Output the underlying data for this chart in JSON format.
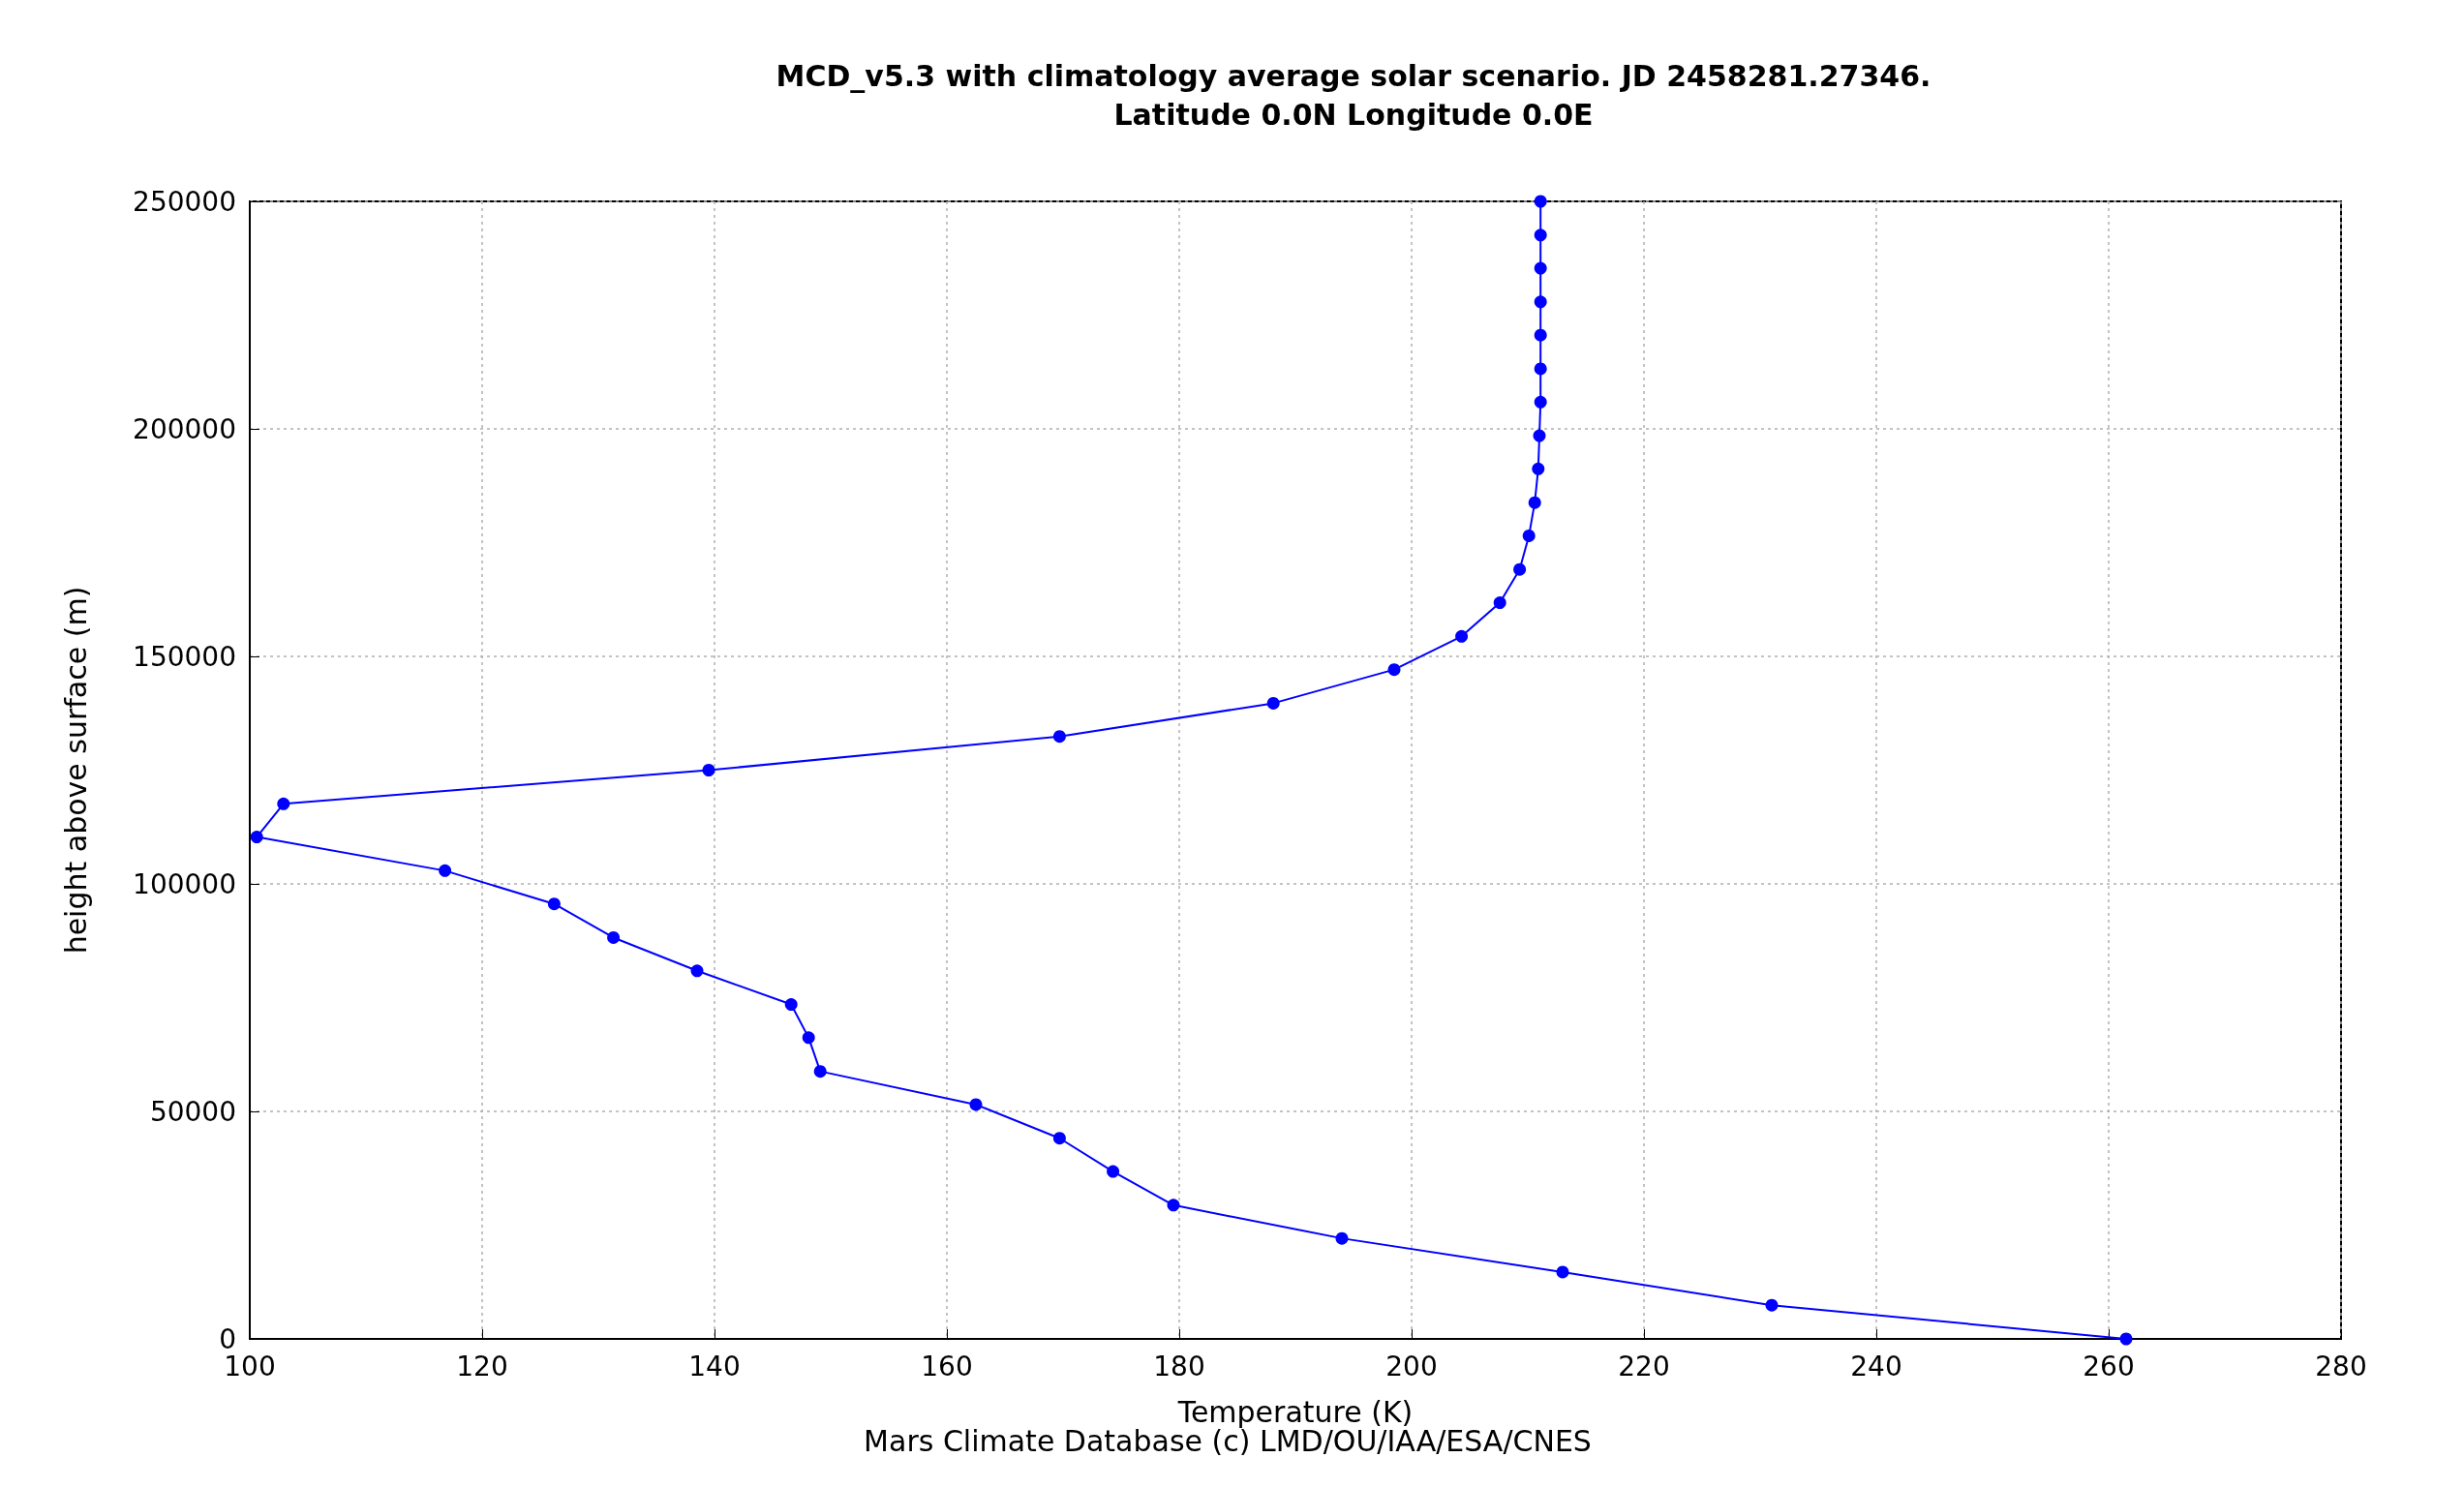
{
  "chart_data": {
    "type": "line",
    "title": "MCD_v5.3 with climatology average solar scenario. JD 2458281.27346.\nLatitude 0.0N Longitude 0.0E",
    "xlabel": "Temperature (K)",
    "ylabel": "height above surface (m)",
    "annotations": [
      "Mars Climate Database (c) LMD/OU/IAA/ESA/CNES"
    ],
    "series": [
      {
        "color": "#0000ff",
        "x": [
          261.5,
          231,
          213,
          194,
          179.5,
          174.3,
          169.7,
          162.5,
          149.1,
          148.1,
          146.6,
          138.5,
          131.3,
          126.2,
          116.8,
          100.6,
          102.9,
          139.5,
          169.7,
          188.1,
          198.5,
          204.3,
          207.6,
          209.3,
          210.1,
          210.6,
          210.9,
          211,
          211.1,
          211.1,
          211.1,
          211.1,
          211.1,
          211.1,
          211.1
        ],
        "values": [
          0,
          7400,
          14700,
          22100,
          29400,
          36800,
          44100,
          51500,
          58800,
          66200,
          73500,
          80900,
          88200,
          95600,
          102900,
          110300,
          117600,
          125000,
          132400,
          139700,
          147100,
          154400,
          161800,
          169100,
          176500,
          183800,
          191200,
          198500,
          205900,
          213200,
          220600,
          227900,
          235300,
          242600,
          250000
        ]
      }
    ],
    "xlim": [
      100,
      280
    ],
    "xticks": [
      100,
      120,
      140,
      160,
      180,
      200,
      220,
      240,
      260,
      280
    ],
    "ylim": [
      0,
      250000
    ],
    "yticks": [
      0,
      50000,
      100000,
      150000,
      200000,
      250000
    ],
    "grid": true,
    "marker": "circle",
    "line_style": "solid"
  }
}
